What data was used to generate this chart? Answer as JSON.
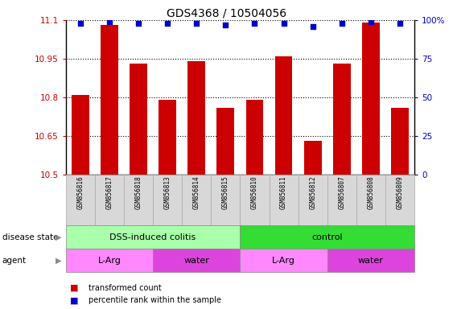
{
  "title": "GDS4368 / 10504056",
  "samples": [
    "GSM856816",
    "GSM856817",
    "GSM856818",
    "GSM856813",
    "GSM856814",
    "GSM856815",
    "GSM856810",
    "GSM856811",
    "GSM856812",
    "GSM856807",
    "GSM856808",
    "GSM856809"
  ],
  "bar_values": [
    10.81,
    11.08,
    10.93,
    10.79,
    10.94,
    10.76,
    10.79,
    10.96,
    10.63,
    10.93,
    11.09,
    10.76
  ],
  "percentile_values": [
    98,
    99,
    98,
    98,
    98,
    97,
    98,
    98,
    96,
    98,
    99,
    98
  ],
  "ylim_left": [
    10.5,
    11.1
  ],
  "ylim_right": [
    0,
    100
  ],
  "yticks_left": [
    10.5,
    10.65,
    10.8,
    10.95,
    11.1
  ],
  "yticks_right": [
    0,
    25,
    50,
    75,
    100
  ],
  "ytick_labels_left": [
    "10.5",
    "10.65",
    "10.8",
    "10.95",
    "11.1"
  ],
  "ytick_labels_right": [
    "0",
    "25",
    "50",
    "75",
    "100%"
  ],
  "bar_color": "#cc0000",
  "percentile_color": "#0000cc",
  "disease_state_groups": [
    {
      "label": "DSS-induced colitis",
      "start": 0,
      "end": 6,
      "color": "#aaffaa"
    },
    {
      "label": "control",
      "start": 6,
      "end": 12,
      "color": "#33dd33"
    }
  ],
  "agent_groups": [
    {
      "label": "L-Arg",
      "start": 0,
      "end": 3,
      "color": "#ff88ff"
    },
    {
      "label": "water",
      "start": 3,
      "end": 6,
      "color": "#dd44dd"
    },
    {
      "label": "L-Arg",
      "start": 6,
      "end": 9,
      "color": "#ff88ff"
    },
    {
      "label": "water",
      "start": 9,
      "end": 12,
      "color": "#dd44dd"
    }
  ],
  "left_axis_color": "#cc0000",
  "right_axis_color": "#0000cc",
  "background_color": "#ffffff",
  "label_bg_color": "#d8d8d8",
  "legend_items": [
    {
      "label": "transformed count",
      "color": "#cc0000"
    },
    {
      "label": "percentile rank within the sample",
      "color": "#0000cc"
    }
  ],
  "disease_state_label": "disease state",
  "agent_label": "agent"
}
